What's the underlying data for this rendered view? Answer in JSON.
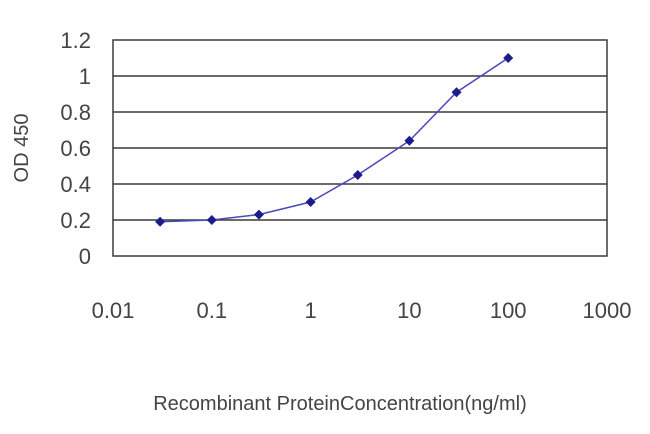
{
  "chart_data": {
    "type": "line",
    "xscale": "log",
    "x": [
      0.03,
      0.1,
      0.3,
      1,
      3,
      10,
      30,
      100
    ],
    "series": [
      {
        "values": [
          0.19,
          0.2,
          0.23,
          0.3,
          0.45,
          0.64,
          0.91,
          1.1
        ]
      }
    ],
    "xlim": [
      0.01,
      1000
    ],
    "ylim": [
      0,
      1.2
    ],
    "xticks": [
      "0.01",
      "0.1",
      "1",
      "10",
      "100",
      "1000"
    ],
    "yticks": [
      "0",
      "0.2",
      "0.4",
      "0.6",
      "0.8",
      "1",
      "1.2"
    ],
    "xlabel": "Recombinant ProteinConcentration(ng/ml)",
    "ylabel": "OD 450",
    "grid": "horizontal",
    "colors": {
      "line": "#4a4ab8",
      "marker": "#1c1c8c",
      "grid": "#3a3a3a",
      "text": "#444444"
    }
  }
}
